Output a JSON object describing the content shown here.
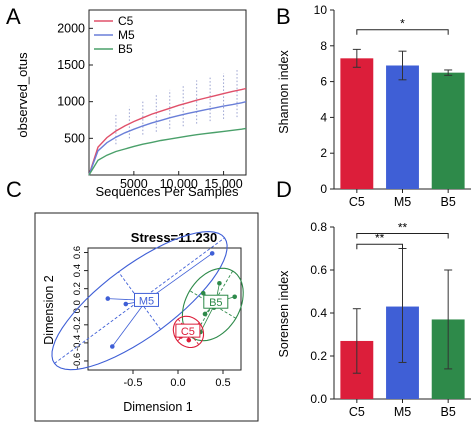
{
  "panels": {
    "A": "A",
    "B": "B",
    "C": "C",
    "D": "D"
  },
  "colors": {
    "C5": "#dc1e3a",
    "M5": "#3f5fd6",
    "B5": "#2e8a4a",
    "rarefaction_C5": "#e0506a",
    "rarefaction_M5": "#6a7fd8",
    "rarefaction_B5": "#4aa06a",
    "errorbar_dots": "#9aa2d0"
  },
  "chart_data": [
    {
      "panel": "A",
      "type": "line",
      "xlabel": "Sequences Per Samples",
      "ylabel": "observed_otus",
      "xlim": [
        0,
        17500
      ],
      "ylim": [
        0,
        2250
      ],
      "xticks": [
        5000,
        10000,
        15000
      ],
      "xtick_labels": [
        "5000",
        "10,000",
        "15,000"
      ],
      "yticks": [
        500,
        1000,
        1500,
        2000
      ],
      "legend": "top-left",
      "x": [
        0,
        1000,
        2000,
        3000,
        4000,
        5000,
        6000,
        7000,
        8000,
        9000,
        10000,
        11000,
        12000,
        13000,
        14000,
        15000,
        16000,
        17000,
        17500
      ],
      "series": [
        {
          "name": "C5",
          "values": [
            0,
            380,
            510,
            600,
            670,
            730,
            780,
            830,
            870,
            910,
            950,
            985,
            1020,
            1050,
            1080,
            1110,
            1140,
            1165,
            1180
          ]
        },
        {
          "name": "M5",
          "values": [
            0,
            330,
            440,
            515,
            575,
            625,
            670,
            710,
            745,
            780,
            810,
            840,
            865,
            890,
            915,
            940,
            960,
            985,
            1000
          ]
        },
        {
          "name": "B5",
          "values": [
            0,
            200,
            270,
            320,
            355,
            390,
            420,
            445,
            470,
            490,
            510,
            530,
            550,
            565,
            580,
            595,
            610,
            625,
            635
          ]
        }
      ],
      "error_x": [
        3000,
        4500,
        6000,
        7500,
        9000,
        10500,
        12000,
        13500,
        15000,
        16500
      ],
      "error_y": [
        {
          "x": 3000,
          "low": 420,
          "high": 820
        },
        {
          "x": 4500,
          "low": 500,
          "high": 930
        },
        {
          "x": 6000,
          "low": 550,
          "high": 1020
        },
        {
          "x": 7500,
          "low": 590,
          "high": 1100
        },
        {
          "x": 9000,
          "low": 630,
          "high": 1160
        },
        {
          "x": 10500,
          "low": 665,
          "high": 1230
        },
        {
          "x": 12000,
          "low": 700,
          "high": 1290
        },
        {
          "x": 13500,
          "low": 735,
          "high": 1340
        },
        {
          "x": 15000,
          "low": 765,
          "high": 1390
        },
        {
          "x": 16500,
          "low": 790,
          "high": 1440
        }
      ]
    },
    {
      "panel": "B",
      "type": "bar",
      "ylabel": "Shannon index",
      "xlabel": "",
      "ylim": [
        0,
        10
      ],
      "yticks": [
        0,
        2,
        4,
        6,
        8,
        10
      ],
      "categories": [
        "C5",
        "M5",
        "B5"
      ],
      "values": [
        7.3,
        6.9,
        6.5
      ],
      "errors": [
        0.5,
        0.8,
        0.15
      ],
      "significance": [
        {
          "from": "C5",
          "to": "B5",
          "label": "*",
          "y": 8.9
        }
      ]
    },
    {
      "panel": "C",
      "type": "scatter",
      "title": "Stress=11.230",
      "xlabel": "Dimension 1",
      "ylabel": "Dimension 2",
      "xlim": [
        -1.0,
        0.7
      ],
      "ylim": [
        -0.7,
        0.65
      ],
      "xticks": [
        -0.5,
        0.0,
        0.5
      ],
      "xtick_labels": [
        "-0.5",
        "0.0",
        "0.5"
      ],
      "yticks": [
        -0.6,
        -0.4,
        -0.2,
        0.0,
        0.2,
        0.4,
        0.6
      ],
      "ytick_labels": [
        "-0.6",
        "-0.4",
        "-0.2",
        "0.0",
        "0.2",
        "0.4",
        "0.6"
      ],
      "groups": [
        {
          "name": "M5",
          "points": [
            [
              -0.73,
              -0.44
            ],
            [
              -0.78,
              0.09
            ],
            [
              0.38,
              0.59
            ],
            [
              -0.58,
              0.03
            ]
          ],
          "centroid": [
            -0.35,
            0.07
          ]
        },
        {
          "name": "B5",
          "points": [
            [
              0.28,
              0.15
            ],
            [
              0.46,
              0.26
            ],
            [
              0.63,
              0.11
            ],
            [
              0.3,
              -0.08
            ],
            [
              0.4,
              -0.01
            ],
            [
              0.25,
              -0.28
            ]
          ],
          "centroid": [
            0.42,
            0.05
          ]
        },
        {
          "name": "C5",
          "points": [
            [
              0.06,
              -0.21
            ],
            [
              0.16,
              -0.22
            ],
            [
              0.03,
              -0.33
            ],
            [
              0.12,
              -0.37
            ],
            [
              0.21,
              -0.26
            ]
          ],
          "centroid": [
            0.11,
            -0.27
          ]
        }
      ]
    },
    {
      "panel": "D",
      "type": "bar",
      "ylabel": "Sorensen index",
      "xlabel": "",
      "ylim": [
        0,
        0.8
      ],
      "yticks": [
        0.0,
        0.2,
        0.4,
        0.6,
        0.8
      ],
      "ytick_labels": [
        "0.0",
        "0.2",
        "0.4",
        "0.6",
        "0.8"
      ],
      "categories": [
        "C5",
        "M5",
        "B5"
      ],
      "values": [
        0.27,
        0.43,
        0.37
      ],
      "err_low": [
        0.12,
        0.17,
        0.14
      ],
      "err_high": [
        0.42,
        0.7,
        0.6
      ],
      "significance": [
        {
          "from": "C5",
          "to": "M5",
          "label": "**",
          "y": 0.72
        },
        {
          "from": "C5",
          "to": "B5",
          "label": "**",
          "y": 0.77
        }
      ]
    }
  ]
}
